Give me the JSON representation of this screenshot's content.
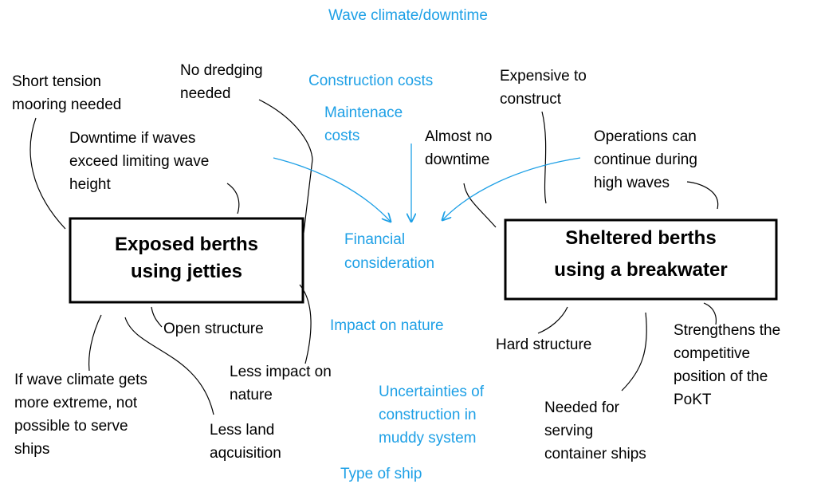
{
  "title": "Wave climate/downtime",
  "center": [
    "Financial",
    "consideration"
  ],
  "factors": [
    [
      "Construction costs"
    ],
    [
      "Maintenace",
      "costs"
    ],
    [
      "Impact on nature"
    ],
    [
      "Uncertainties of",
      "construction in",
      "muddy system"
    ],
    [
      "Type of ship"
    ]
  ],
  "options": [
    {
      "label": [
        "Exposed berths",
        "using jetties"
      ],
      "notes": [
        [
          "Short tension",
          "mooring needed"
        ],
        [
          "No dredging",
          "needed"
        ],
        [
          "Downtime if waves",
          "exceed limiting wave",
          "height"
        ],
        [
          "Open structure"
        ],
        [
          "If wave climate gets",
          "more extreme, not",
          "possible to serve",
          "ships"
        ],
        [
          "Less impact on",
          "nature"
        ],
        [
          "Less land",
          "aqcuisition"
        ]
      ]
    },
    {
      "label": [
        "Sheltered berths",
        "using a breakwater"
      ],
      "notes": [
        [
          "Expensive to",
          "construct"
        ],
        [
          "Almost no",
          "downtime"
        ],
        [
          "Operations can",
          "continue during",
          "high waves"
        ],
        [
          "Hard structure"
        ],
        [
          "Strengthens the",
          "competitive",
          "position of the",
          "PoKT"
        ],
        [
          "Needed for",
          "serving",
          "container ships"
        ]
      ]
    }
  ]
}
